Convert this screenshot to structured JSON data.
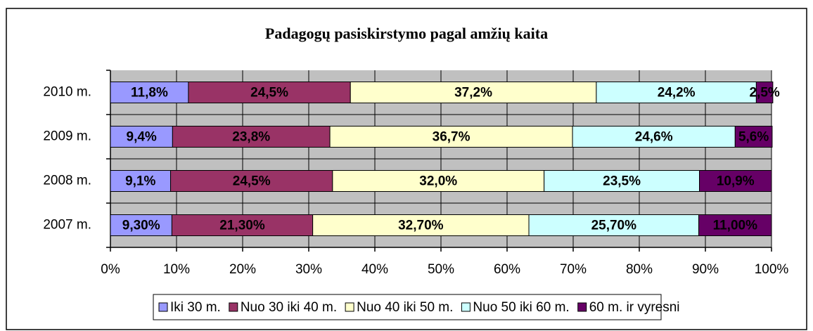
{
  "chart_data": {
    "type": "bar",
    "orientation": "horizontal",
    "stacked": true,
    "title": "Padagogų pasiskirstymo pagal amžių kaita",
    "categories": [
      "2007 m.",
      "2008 m.",
      "2009 m.",
      "2010 m."
    ],
    "series": [
      {
        "name": "Iki 30 m.",
        "color": "#9999ff",
        "values": [
          9.3,
          9.1,
          9.4,
          11.8
        ],
        "value_labels": [
          "9,30%",
          "9,1%",
          "9,4%",
          "11,8%"
        ]
      },
      {
        "name": "Nuo 30 iki 40 m.",
        "color": "#993366",
        "values": [
          21.3,
          24.5,
          23.8,
          24.5
        ],
        "value_labels": [
          "21,30%",
          "24,5%",
          "23,8%",
          "24,5%"
        ]
      },
      {
        "name": "Nuo 40 iki 50 m.",
        "color": "#ffffcc",
        "values": [
          32.7,
          32.0,
          36.7,
          37.2
        ],
        "value_labels": [
          "32,70%",
          "32,0%",
          "36,7%",
          "37,2%"
        ]
      },
      {
        "name": "Nuo 50 iki 60 m.",
        "color": "#ccffff",
        "values": [
          25.7,
          23.5,
          24.6,
          24.2
        ],
        "value_labels": [
          "25,70%",
          "23,5%",
          "24,6%",
          "24,2%"
        ]
      },
      {
        "name": "60 m. ir vyresni",
        "color": "#660066",
        "values": [
          11.0,
          10.9,
          5.6,
          2.5
        ],
        "value_labels": [
          "11,00%",
          "10,9%",
          "5,6%",
          "2,5%"
        ]
      }
    ],
    "xlim": [
      0,
      100
    ],
    "xticks": [
      {
        "value": 0,
        "label": "0%"
      },
      {
        "value": 10,
        "label": "10%"
      },
      {
        "value": 20,
        "label": "20%"
      },
      {
        "value": 30,
        "label": "30%"
      },
      {
        "value": 40,
        "label": "40%"
      },
      {
        "value": 50,
        "label": "50%"
      },
      {
        "value": 60,
        "label": "60%"
      },
      {
        "value": 70,
        "label": "70%"
      },
      {
        "value": 80,
        "label": "80%"
      },
      {
        "value": 90,
        "label": "90%"
      },
      {
        "value": 100,
        "label": "100%"
      }
    ],
    "grid": true,
    "plot_background": "#c0c0c0",
    "legend": "bottom"
  }
}
